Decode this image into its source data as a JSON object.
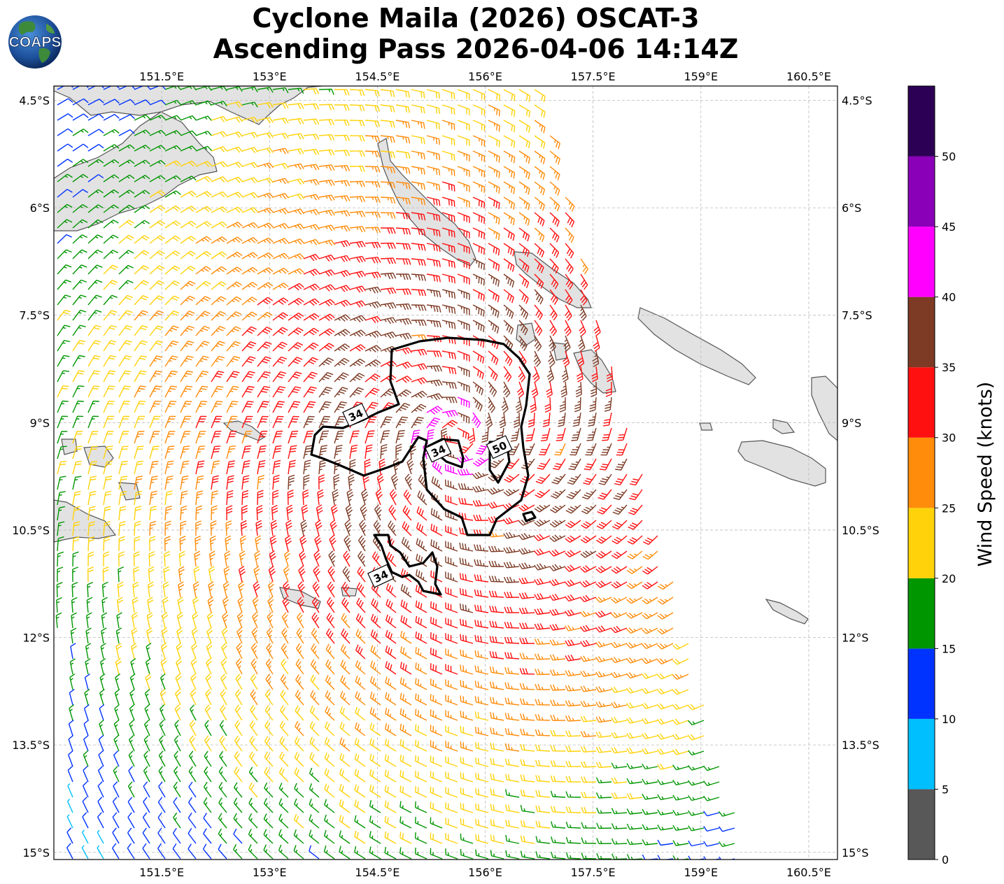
{
  "title": {
    "line1": "Cyclone Maila (2026) OSCAT-3",
    "line2": "Ascending Pass 2026-04-06 14:14Z"
  },
  "logo": {
    "text": "COAPS"
  },
  "map": {
    "lon_range": [
      150.0,
      160.9
    ],
    "lat_range": [
      -15.1,
      -4.3
    ],
    "lon_ticks": [
      {
        "value": 151.5,
        "label": "151.5°E"
      },
      {
        "value": 153.0,
        "label": "153°E"
      },
      {
        "value": 154.5,
        "label": "154.5°E"
      },
      {
        "value": 156.0,
        "label": "156°E"
      },
      {
        "value": 157.5,
        "label": "157.5°E"
      },
      {
        "value": 159.0,
        "label": "159°E"
      },
      {
        "value": 160.5,
        "label": "160.5°E"
      }
    ],
    "lat_ticks": [
      {
        "value": -4.5,
        "label": "4.5°S"
      },
      {
        "value": -6.0,
        "label": "6°S"
      },
      {
        "value": -7.5,
        "label": "7.5°S"
      },
      {
        "value": -9.0,
        "label": "9°S"
      },
      {
        "value": -10.5,
        "label": "10.5°S"
      },
      {
        "value": -12.0,
        "label": "12°S"
      },
      {
        "value": -13.5,
        "label": "13.5°S"
      },
      {
        "value": -15.0,
        "label": "15°S"
      }
    ],
    "storm_center": {
      "lon": 155.6,
      "lat": -9.2
    },
    "contour_labels": [
      {
        "text": "34",
        "lon": 154.2,
        "lat": -8.9
      },
      {
        "text": "34",
        "lon": 155.35,
        "lat": -9.4
      },
      {
        "text": "50",
        "lon": 156.2,
        "lat": -9.35
      },
      {
        "text": "34",
        "lon": 154.55,
        "lat": -11.15
      }
    ],
    "colors": {
      "land": "#e2e2e2",
      "coast": "#555555",
      "contour": "#000000",
      "grid": "#bbbbbb"
    }
  },
  "colorbar": {
    "label": "Wind Speed (knots)",
    "ticks": [
      "0",
      "5",
      "10",
      "15",
      "20",
      "25",
      "30",
      "35",
      "40",
      "45",
      "50"
    ],
    "bins": [
      {
        "min": 0,
        "max": 5,
        "color": "#585858"
      },
      {
        "min": 5,
        "max": 10,
        "color": "#00bfff"
      },
      {
        "min": 10,
        "max": 15,
        "color": "#0033ff"
      },
      {
        "min": 15,
        "max": 20,
        "color": "#009600"
      },
      {
        "min": 20,
        "max": 25,
        "color": "#ffd20a"
      },
      {
        "min": 25,
        "max": 30,
        "color": "#ff8c0a"
      },
      {
        "min": 30,
        "max": 35,
        "color": "#ff1010"
      },
      {
        "min": 35,
        "max": 40,
        "color": "#7d3a24"
      },
      {
        "min": 40,
        "max": 45,
        "color": "#ff00ff"
      },
      {
        "min": 45,
        "max": 50,
        "color": "#8a00b8"
      },
      {
        "min": 50,
        "max": 55,
        "color": "#2b0055"
      }
    ]
  }
}
